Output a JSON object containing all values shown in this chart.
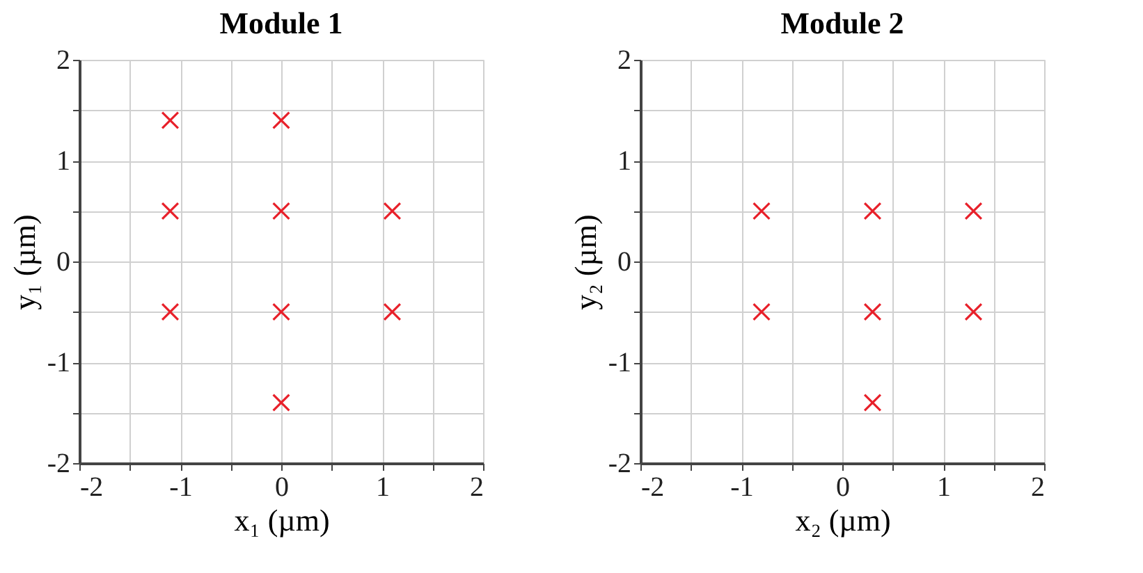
{
  "chart_data": [
    {
      "type": "scatter",
      "title": "Module 1",
      "xlabel": "x₁ (µm)",
      "ylabel": "y₁ (µm)",
      "marker": "cross",
      "grid": true,
      "xlim": [
        -2,
        2
      ],
      "ylim": [
        -2,
        2
      ],
      "xticks": [
        -2,
        {
          "value": -1.5,
          "label": null
        },
        -1,
        {
          "value": -0.5,
          "label": null
        },
        0,
        {
          "value": 0.5,
          "label": null
        },
        1,
        {
          "value": 1.5,
          "label": null
        },
        2
      ],
      "yticks": [
        -2,
        {
          "value": -1.5,
          "label": null
        },
        -1,
        {
          "value": -0.5,
          "label": null
        },
        0,
        {
          "value": 0.5,
          "label": null
        },
        1,
        {
          "value": 1.5,
          "label": null
        },
        2
      ],
      "series": [
        {
          "color": "#e8202a",
          "x": [
            -1.1,
            0,
            -1.1,
            0,
            1.1,
            -1.1,
            0,
            1.1,
            0
          ],
          "values": [
            1.4,
            1.4,
            0.5,
            0.5,
            0.5,
            -0.5,
            -0.5,
            -0.5,
            -1.4
          ]
        }
      ]
    },
    {
      "type": "scatter",
      "title": "Module 2",
      "xlabel": "x₂ (µm)",
      "ylabel": "y₂ (µm)",
      "marker": "cross",
      "grid": true,
      "xlim": [
        -2,
        2
      ],
      "ylim": [
        -2,
        2
      ],
      "xticks": [
        -2,
        {
          "value": -1.5,
          "label": null
        },
        -1,
        {
          "value": -0.5,
          "label": null
        },
        0,
        {
          "value": 0.5,
          "label": null
        },
        1,
        {
          "value": 1.5,
          "label": null
        },
        2
      ],
      "yticks": [
        -2,
        {
          "value": -1.5,
          "label": null
        },
        -1,
        {
          "value": -0.5,
          "label": null
        },
        0,
        {
          "value": 0.5,
          "label": null
        },
        1,
        {
          "value": 1.5,
          "label": null
        },
        2
      ],
      "series": [
        {
          "color": "#e8202a",
          "x": [
            -0.8,
            0.3,
            1.3,
            -0.8,
            0.3,
            1.3,
            0.3
          ],
          "values": [
            0.5,
            0.5,
            0.5,
            -0.5,
            -0.5,
            -0.5,
            -1.4
          ]
        }
      ]
    }
  ]
}
